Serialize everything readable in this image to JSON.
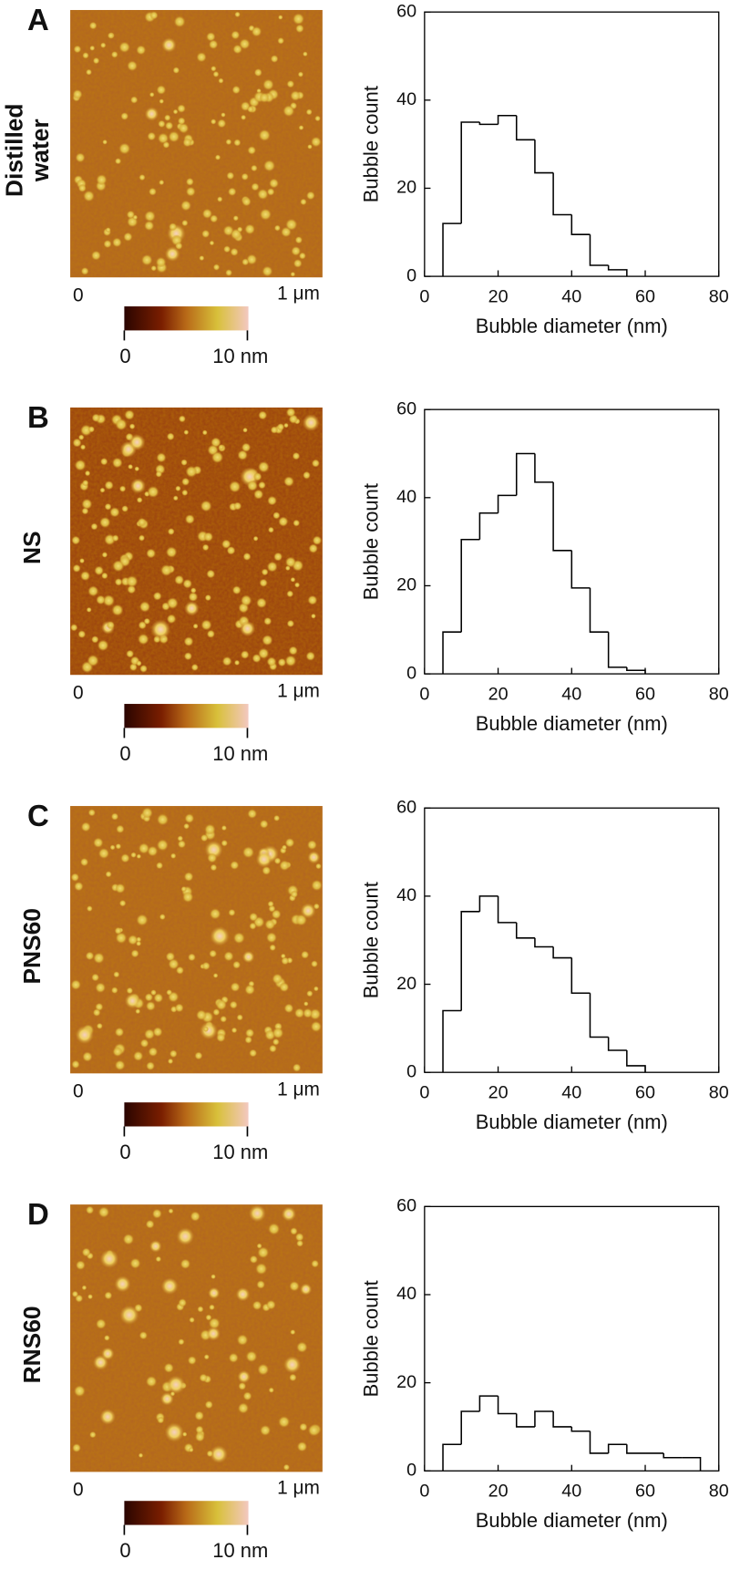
{
  "panels": [
    {
      "letter": "A",
      "sample": [
        "Distilled",
        "water"
      ],
      "image_axis": {
        "start": "0",
        "end": "1 μm"
      },
      "colorbar": {
        "min": "0",
        "max": "10 nm"
      }
    },
    {
      "letter": "B",
      "sample": [
        "NS"
      ],
      "image_axis": {
        "start": "0",
        "end": "1 μm"
      },
      "colorbar": {
        "min": "0",
        "max": "10 nm"
      }
    },
    {
      "letter": "C",
      "sample": [
        "PNS60"
      ],
      "image_axis": {
        "start": "0",
        "end": "1 μm"
      },
      "colorbar": {
        "min": "0",
        "max": "10 nm"
      }
    },
    {
      "letter": "D",
      "sample": [
        "RNS60"
      ],
      "image_axis": {
        "start": "0",
        "end": "1 μm"
      },
      "colorbar": {
        "min": "0",
        "max": "10 nm"
      }
    }
  ],
  "chart_data": [
    {
      "type": "histogram",
      "xlabel": "Bubble diameter (nm)",
      "ylabel": "Bubble count",
      "bins": [
        5,
        10,
        15,
        20,
        25,
        30,
        35,
        40,
        45,
        50,
        55
      ],
      "values": [
        12,
        35,
        34.5,
        36.5,
        31,
        23.5,
        14,
        9.5,
        2.5,
        1.5
      ],
      "xlim": [
        0,
        80
      ],
      "ylim": [
        0,
        60
      ],
      "xticks": [
        0,
        20,
        40,
        60,
        80
      ],
      "yticks": [
        0,
        20,
        40,
        60
      ]
    },
    {
      "type": "histogram",
      "xlabel": "Bubble diameter (nm)",
      "ylabel": "Bubble count",
      "bins": [
        5,
        10,
        15,
        20,
        25,
        30,
        35,
        40,
        45,
        50,
        55,
        60
      ],
      "values": [
        9.5,
        30.5,
        36.5,
        40.5,
        50,
        43.5,
        28,
        19.5,
        9.5,
        1.5,
        0.8
      ],
      "xlim": [
        0,
        80
      ],
      "ylim": [
        0,
        60
      ],
      "xticks": [
        0,
        20,
        40,
        60,
        80
      ],
      "yticks": [
        0,
        20,
        40,
        60
      ]
    },
    {
      "type": "histogram",
      "xlabel": "Bubble diameter (nm)",
      "ylabel": "Bubble count",
      "bins": [
        5,
        10,
        15,
        20,
        25,
        30,
        35,
        40,
        45,
        50,
        55,
        60
      ],
      "values": [
        14,
        36.5,
        40,
        34,
        30.5,
        28.5,
        26,
        18,
        8,
        5,
        1.5
      ],
      "xlim": [
        0,
        80
      ],
      "ylim": [
        0,
        60
      ],
      "xticks": [
        0,
        20,
        40,
        60,
        80
      ],
      "yticks": [
        0,
        20,
        40,
        60
      ]
    },
    {
      "type": "histogram",
      "xlabel": "Bubble diameter (nm)",
      "ylabel": "Bubble count",
      "bins": [
        5,
        10,
        15,
        20,
        25,
        30,
        35,
        40,
        45,
        50,
        55,
        60,
        65,
        70,
        75
      ],
      "values": [
        6,
        13.5,
        17,
        13,
        10,
        13.5,
        10,
        9,
        4,
        6,
        4,
        4,
        3,
        3
      ],
      "xlim": [
        0,
        80
      ],
      "ylim": [
        0,
        60
      ],
      "xticks": [
        0,
        20,
        40,
        60,
        80
      ],
      "yticks": [
        0,
        20,
        40,
        60
      ]
    }
  ]
}
